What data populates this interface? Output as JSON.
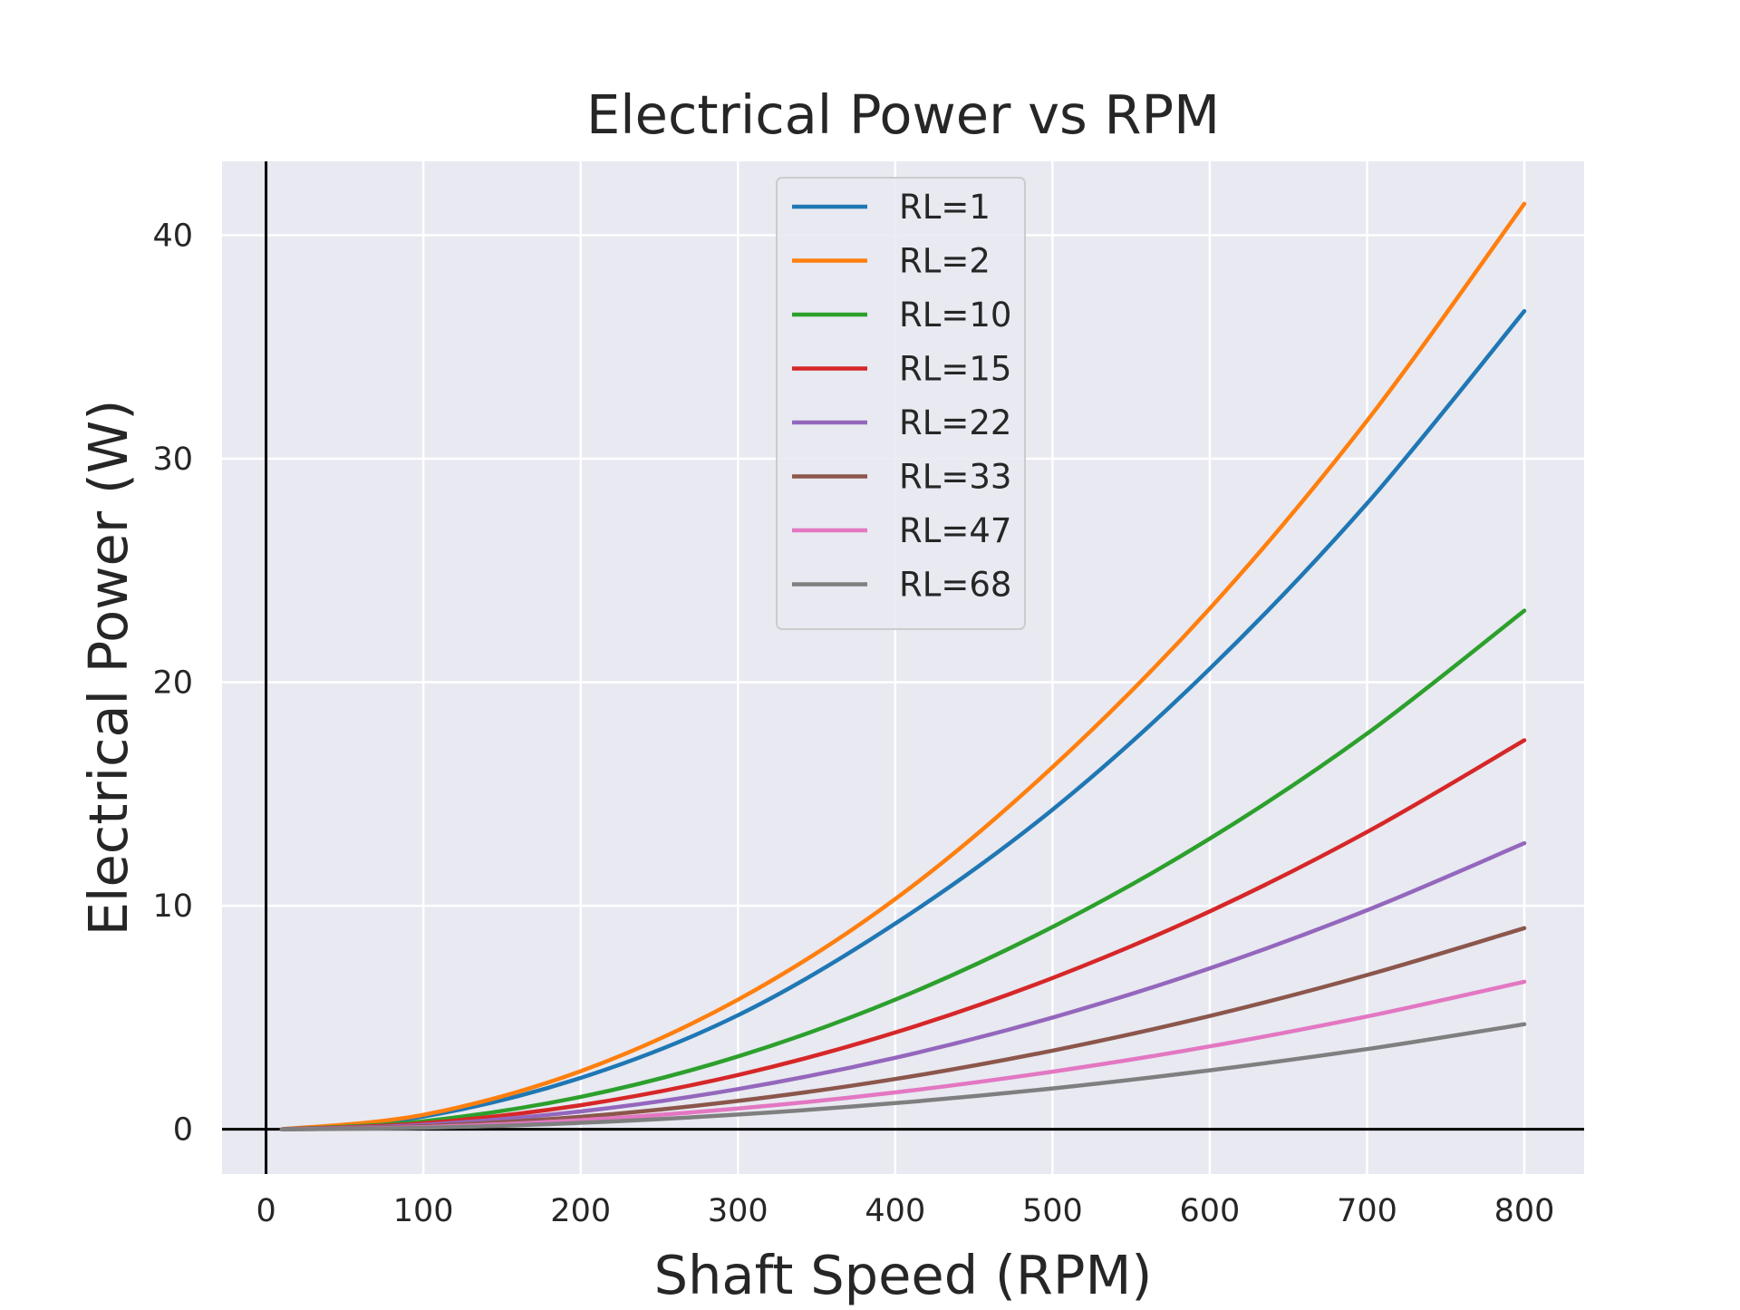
{
  "chart_data": {
    "type": "line",
    "title": "Electrical Power vs RPM",
    "xlabel": "Shaft Speed (RPM)",
    "ylabel": "Electrical Power (W)",
    "xlim": [
      -28,
      838
    ],
    "ylim": [
      -2.0,
      43.3
    ],
    "xticks": [
      0,
      100,
      200,
      300,
      400,
      500,
      600,
      700,
      800
    ],
    "yticks": [
      0,
      10,
      20,
      30,
      40
    ],
    "grid": true,
    "background": "#e8e9f1",
    "grid_color": "#ffffff",
    "legend_position": "top-center",
    "zero_axes": true,
    "x": [
      10,
      100,
      200,
      300,
      400,
      500,
      600,
      700,
      800
    ],
    "series": [
      {
        "name": "RL=1",
        "color": "#1f77b4",
        "values": [
          0.0,
          0.57,
          2.3,
          5.1,
          9.2,
          14.3,
          20.6,
          28.0,
          36.6
        ]
      },
      {
        "name": "RL=2",
        "color": "#ff7f0e",
        "values": [
          0.0,
          0.65,
          2.6,
          5.8,
          10.3,
          16.2,
          23.3,
          31.7,
          41.4
        ]
      },
      {
        "name": "RL=10",
        "color": "#2ca02c",
        "values": [
          0.0,
          0.36,
          1.45,
          3.26,
          5.8,
          9.05,
          13.0,
          17.7,
          23.2
        ]
      },
      {
        "name": "RL=15",
        "color": "#d62728",
        "values": [
          0.0,
          0.27,
          1.08,
          2.43,
          4.33,
          6.77,
          9.75,
          13.3,
          17.4
        ]
      },
      {
        "name": "RL=22",
        "color": "#9467bd",
        "values": [
          0.0,
          0.2,
          0.8,
          1.8,
          3.2,
          5.0,
          7.2,
          9.8,
          12.8
        ]
      },
      {
        "name": "RL=33",
        "color": "#8c564b",
        "values": [
          0.0,
          0.14,
          0.56,
          1.27,
          2.25,
          3.52,
          5.07,
          6.9,
          9.0
        ]
      },
      {
        "name": "RL=47",
        "color": "#e377c2",
        "values": [
          0.0,
          0.1,
          0.41,
          0.93,
          1.65,
          2.58,
          3.71,
          5.05,
          6.6
        ]
      },
      {
        "name": "RL=68",
        "color": "#7f7f7f",
        "values": [
          0.0,
          0.07,
          0.29,
          0.66,
          1.17,
          1.83,
          2.64,
          3.59,
          4.7
        ]
      }
    ]
  }
}
